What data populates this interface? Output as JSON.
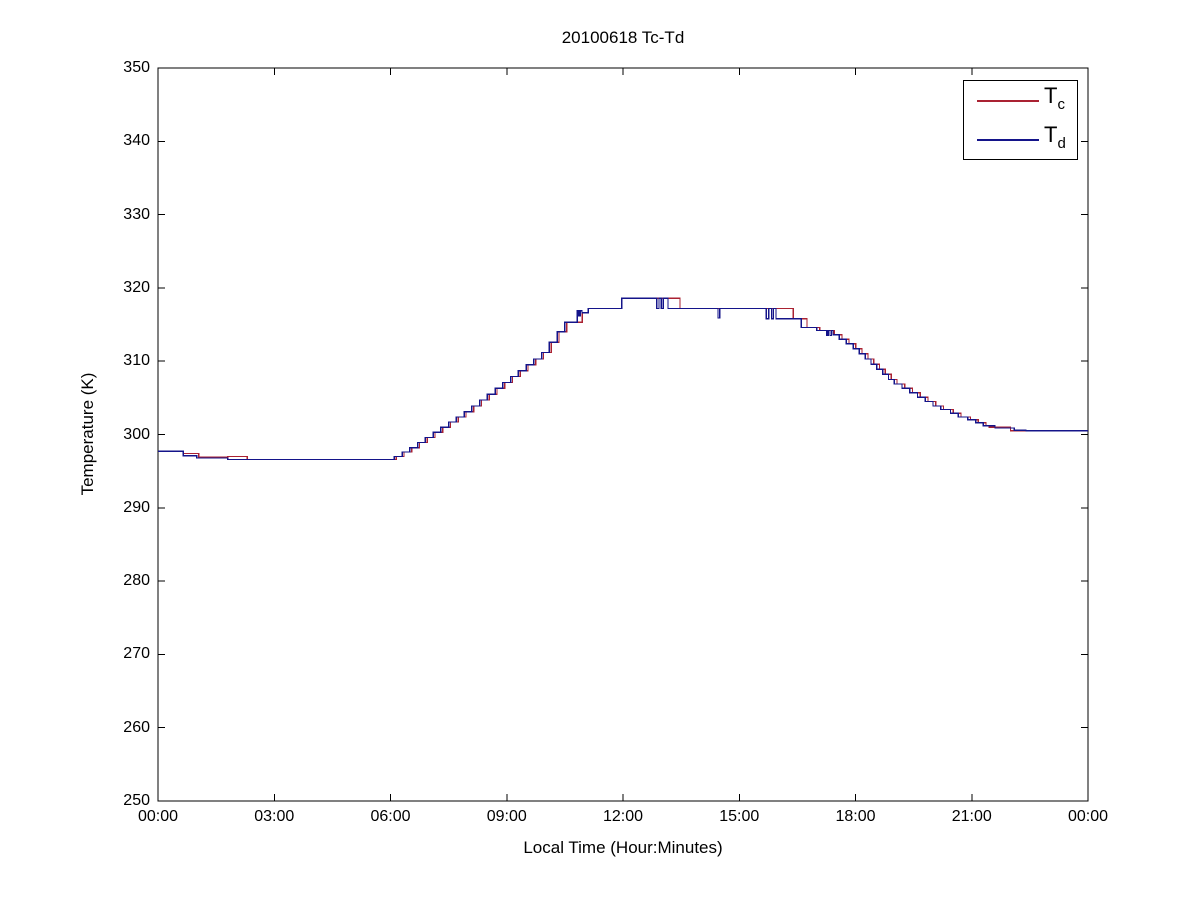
{
  "chart": {
    "title": "20100618 Tc-Td",
    "xlabel": "Local Time (Hour:Minutes)",
    "ylabel": "Temperature (K)"
  },
  "legend": {
    "items": [
      {
        "label": "T",
        "sub": "c",
        "color": "#aa2232"
      },
      {
        "label": "T",
        "sub": "d",
        "color": "#14148a"
      }
    ]
  },
  "chart_data": {
    "type": "line",
    "title": "20100618 Tc-Td",
    "xlabel": "Local Time (Hour:Minutes)",
    "ylabel": "Temperature (K)",
    "x_unit": "hours_local_time",
    "y_unit": "kelvin",
    "xlim": [
      0,
      24
    ],
    "ylim": [
      250,
      350
    ],
    "grid": false,
    "legend_position": "top-right",
    "line_style": "step-after",
    "xticks": {
      "values": [
        0,
        3,
        6,
        9,
        12,
        15,
        18,
        21,
        24
      ],
      "labels": [
        "00:00",
        "03:00",
        "06:00",
        "09:00",
        "12:00",
        "15:00",
        "18:00",
        "21:00",
        "00:00"
      ]
    },
    "yticks": [
      250,
      260,
      270,
      280,
      290,
      300,
      310,
      320,
      330,
      340,
      350
    ],
    "series": [
      {
        "name": "Tc",
        "color": "#aa2232",
        "points": [
          [
            0.0,
            297.7
          ],
          [
            0.65,
            297.4
          ],
          [
            1.05,
            296.9
          ],
          [
            1.8,
            297.0
          ],
          [
            2.3,
            296.6
          ],
          [
            6.15,
            297.0
          ],
          [
            6.35,
            297.6
          ],
          [
            6.55,
            298.2
          ],
          [
            6.75,
            298.9
          ],
          [
            6.95,
            299.6
          ],
          [
            7.15,
            300.3
          ],
          [
            7.35,
            301.0
          ],
          [
            7.55,
            301.7
          ],
          [
            7.75,
            302.4
          ],
          [
            7.95,
            303.1
          ],
          [
            8.15,
            303.9
          ],
          [
            8.35,
            304.7
          ],
          [
            8.55,
            305.5
          ],
          [
            8.75,
            306.3
          ],
          [
            8.95,
            307.1
          ],
          [
            9.15,
            307.9
          ],
          [
            9.35,
            308.7
          ],
          [
            9.55,
            309.5
          ],
          [
            9.75,
            310.3
          ],
          [
            9.95,
            311.2
          ],
          [
            10.15,
            312.6
          ],
          [
            10.35,
            314.0
          ],
          [
            10.55,
            315.3
          ],
          [
            10.95,
            316.6
          ],
          [
            11.1,
            317.2
          ],
          [
            11.97,
            318.6
          ],
          [
            13.47,
            317.2
          ],
          [
            16.39,
            315.8
          ],
          [
            16.75,
            314.6
          ],
          [
            17.08,
            314.2
          ],
          [
            17.45,
            313.6
          ],
          [
            17.65,
            313.0
          ],
          [
            17.83,
            312.4
          ],
          [
            18.01,
            311.7
          ],
          [
            18.17,
            311.0
          ],
          [
            18.32,
            310.3
          ],
          [
            18.47,
            309.6
          ],
          [
            18.62,
            308.9
          ],
          [
            18.77,
            308.2
          ],
          [
            18.92,
            307.5
          ],
          [
            19.07,
            306.9
          ],
          [
            19.27,
            306.3
          ],
          [
            19.47,
            305.7
          ],
          [
            19.67,
            305.1
          ],
          [
            19.87,
            304.5
          ],
          [
            20.07,
            303.9
          ],
          [
            20.27,
            303.4
          ],
          [
            20.52,
            302.9
          ],
          [
            20.72,
            302.4
          ],
          [
            20.97,
            302.0
          ],
          [
            21.17,
            301.6
          ],
          [
            21.37,
            301.2
          ],
          [
            21.45,
            301.0
          ],
          [
            22.0,
            300.5
          ]
        ]
      },
      {
        "name": "Td",
        "color": "#14148a",
        "points": [
          [
            0.0,
            297.7
          ],
          [
            0.65,
            297.1
          ],
          [
            1.0,
            296.8
          ],
          [
            1.8,
            296.6
          ],
          [
            6.1,
            297.0
          ],
          [
            6.3,
            297.6
          ],
          [
            6.5,
            298.2
          ],
          [
            6.7,
            298.9
          ],
          [
            6.9,
            299.6
          ],
          [
            7.1,
            300.3
          ],
          [
            7.3,
            301.0
          ],
          [
            7.5,
            301.7
          ],
          [
            7.7,
            302.4
          ],
          [
            7.9,
            303.1
          ],
          [
            8.1,
            303.9
          ],
          [
            8.3,
            304.7
          ],
          [
            8.5,
            305.5
          ],
          [
            8.7,
            306.3
          ],
          [
            8.9,
            307.1
          ],
          [
            9.1,
            307.9
          ],
          [
            9.3,
            308.7
          ],
          [
            9.5,
            309.5
          ],
          [
            9.7,
            310.3
          ],
          [
            9.9,
            311.2
          ],
          [
            10.1,
            312.6
          ],
          [
            10.3,
            314.0
          ],
          [
            10.5,
            315.3
          ],
          [
            10.82,
            316.9
          ],
          [
            10.86,
            316.2
          ],
          [
            10.9,
            316.9
          ],
          [
            10.94,
            316.6
          ],
          [
            11.1,
            317.2
          ],
          [
            11.97,
            318.6
          ],
          [
            12.87,
            317.2
          ],
          [
            12.93,
            318.6
          ],
          [
            12.99,
            317.2
          ],
          [
            13.04,
            318.6
          ],
          [
            13.16,
            317.2
          ],
          [
            14.45,
            315.9
          ],
          [
            14.5,
            317.2
          ],
          [
            15.7,
            315.8
          ],
          [
            15.76,
            317.2
          ],
          [
            15.83,
            315.8
          ],
          [
            15.88,
            317.2
          ],
          [
            15.95,
            315.8
          ],
          [
            16.6,
            314.6
          ],
          [
            17.0,
            314.2
          ],
          [
            17.26,
            313.5
          ],
          [
            17.3,
            314.2
          ],
          [
            17.34,
            313.5
          ],
          [
            17.38,
            314.2
          ],
          [
            17.42,
            313.6
          ],
          [
            17.58,
            313.0
          ],
          [
            17.76,
            312.4
          ],
          [
            17.94,
            311.7
          ],
          [
            18.1,
            311.0
          ],
          [
            18.25,
            310.3
          ],
          [
            18.4,
            309.6
          ],
          [
            18.55,
            308.9
          ],
          [
            18.7,
            308.2
          ],
          [
            18.85,
            307.5
          ],
          [
            19.0,
            306.9
          ],
          [
            19.2,
            306.3
          ],
          [
            19.4,
            305.7
          ],
          [
            19.6,
            305.1
          ],
          [
            19.8,
            304.5
          ],
          [
            20.0,
            303.9
          ],
          [
            20.2,
            303.4
          ],
          [
            20.45,
            302.9
          ],
          [
            20.65,
            302.4
          ],
          [
            20.9,
            302.0
          ],
          [
            21.1,
            301.6
          ],
          [
            21.3,
            301.2
          ],
          [
            21.6,
            300.9
          ],
          [
            22.1,
            300.6
          ],
          [
            22.4,
            300.5
          ]
        ]
      }
    ]
  }
}
